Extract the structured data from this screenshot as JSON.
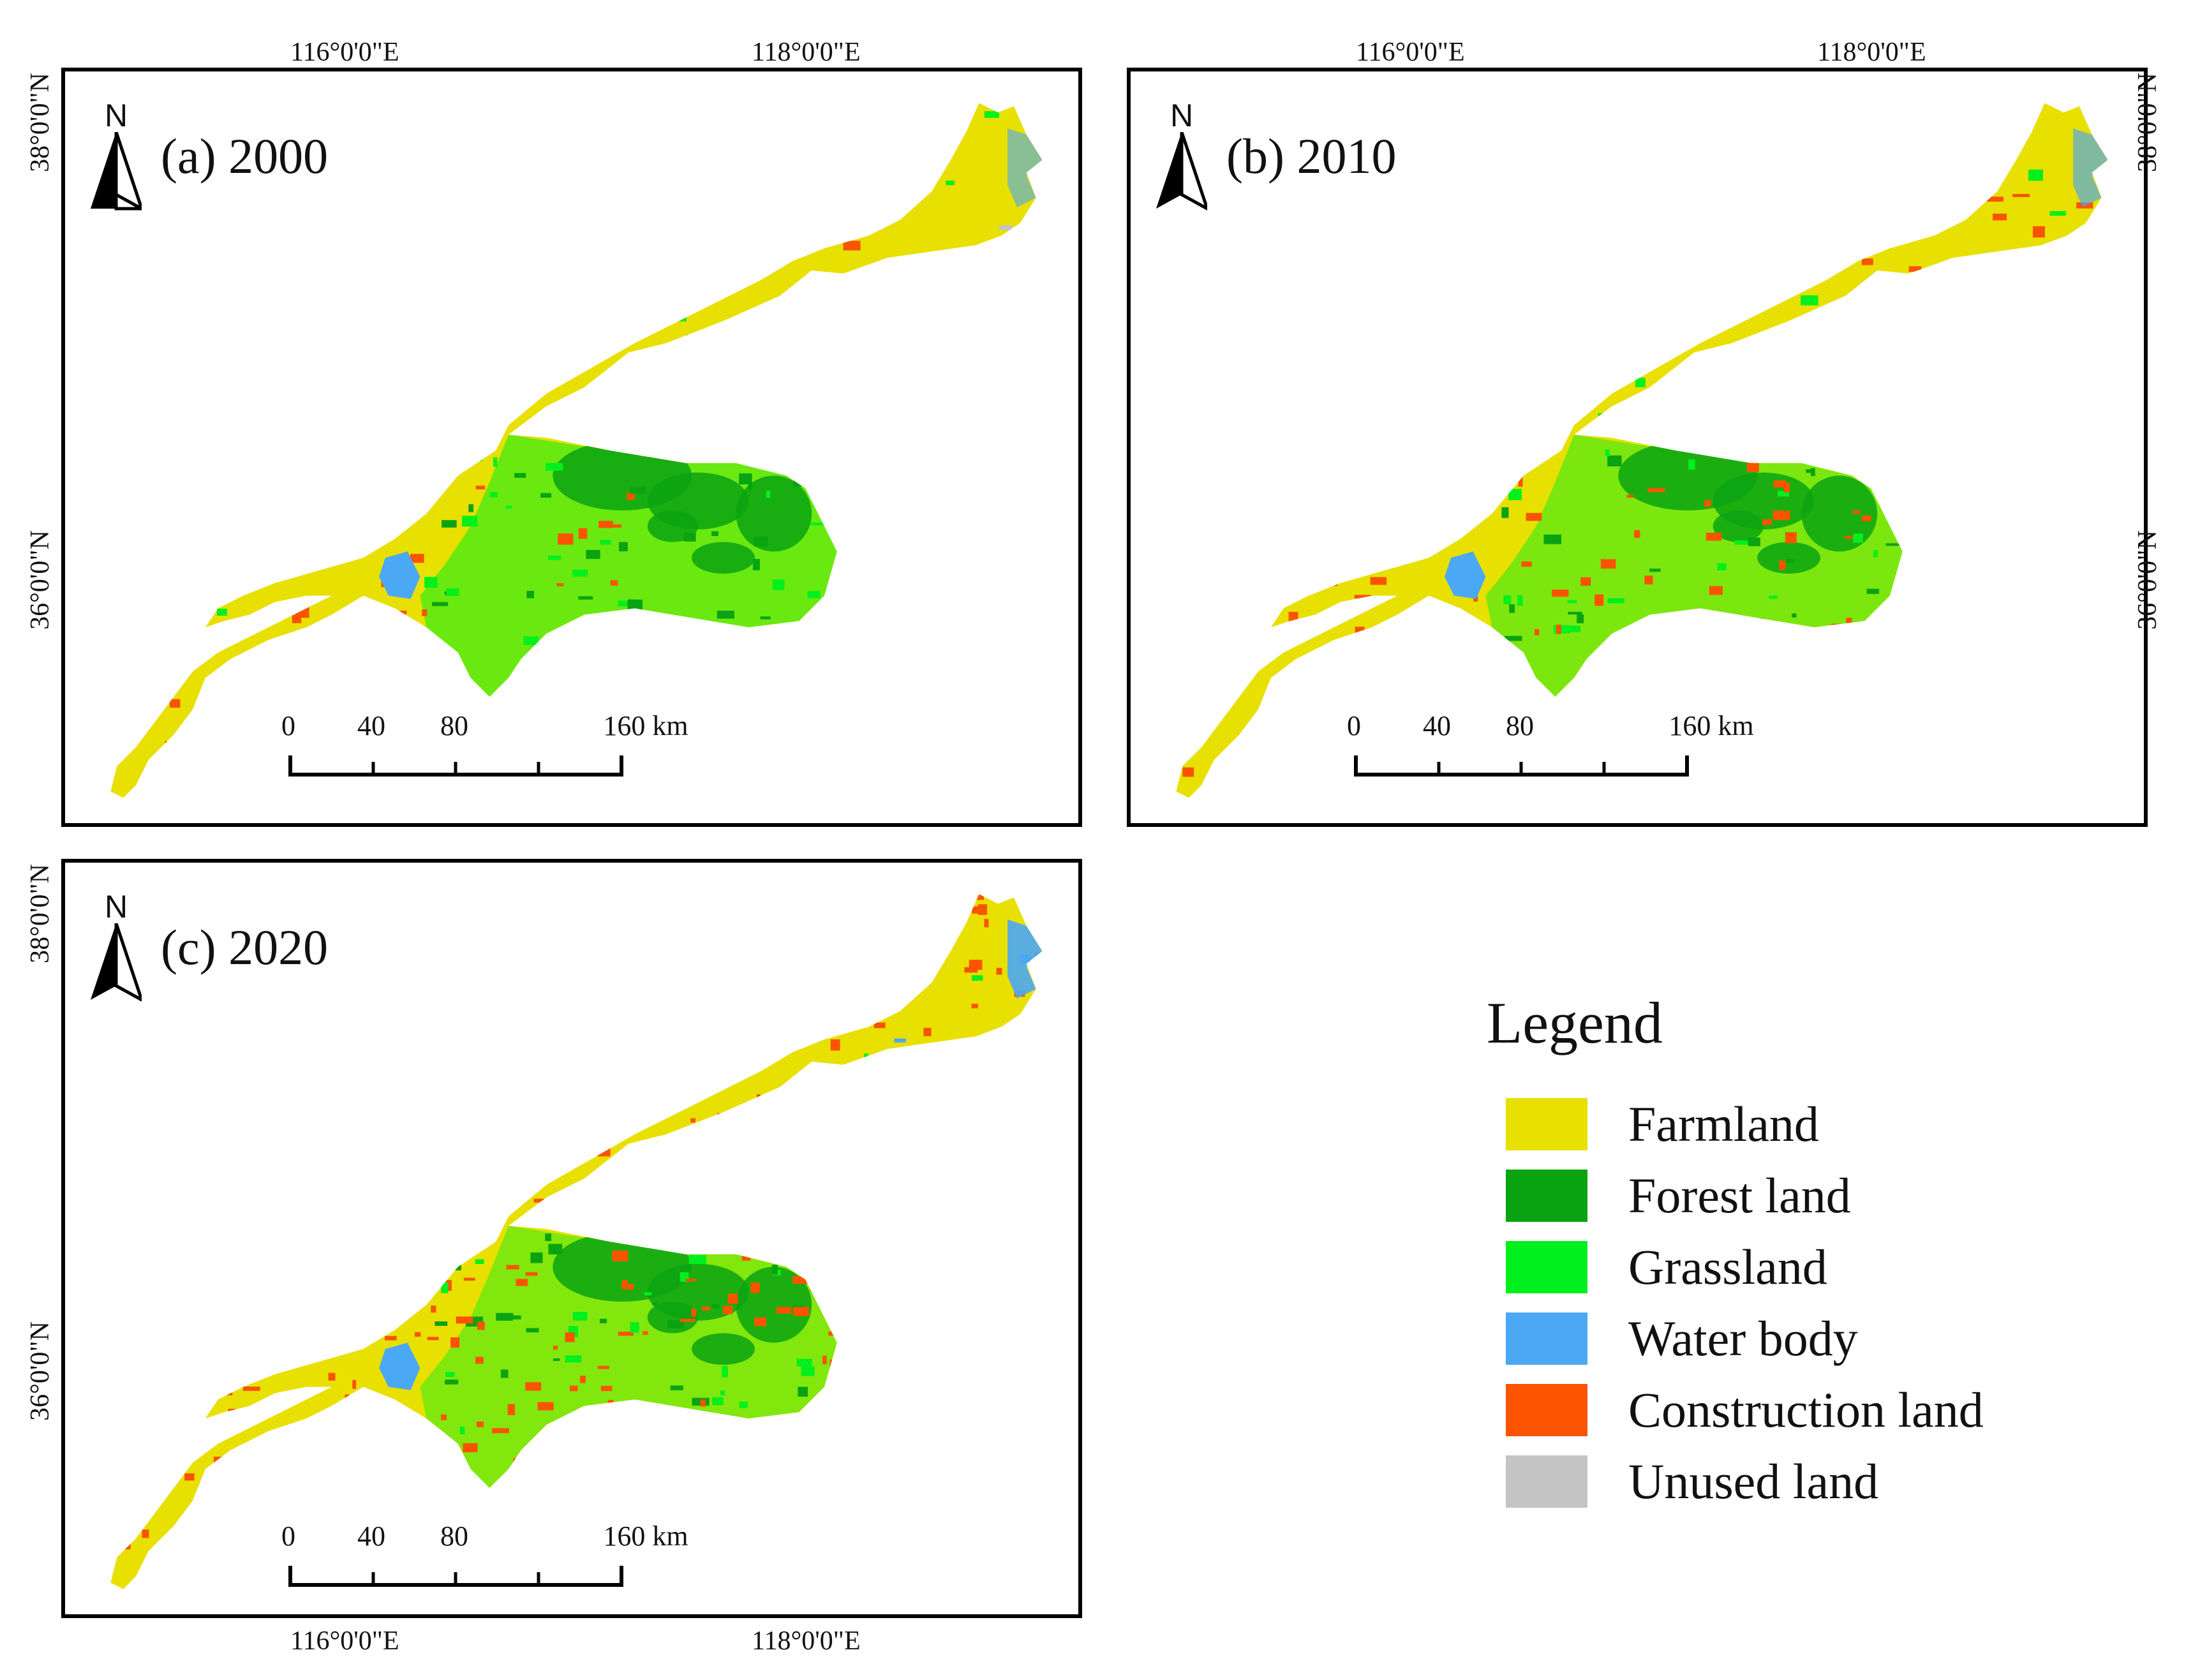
{
  "panels": [
    {
      "id": "a",
      "title": "(a) 2000",
      "north_label": "N",
      "top_coords": [
        "116°0'0\"E",
        "118°0'0\"E"
      ],
      "bottom_coords": [],
      "left_coords": [
        "38°0'0\"N",
        "36°0'0\"N"
      ],
      "right_coords": [],
      "scale_labels": [
        "0",
        "40",
        "80",
        "160 km"
      ],
      "dominant_classes": [
        "Farmland",
        "Forest land",
        "Grassland",
        "Construction land",
        "Water body",
        "Unused land"
      ]
    },
    {
      "id": "b",
      "title": "(b) 2010",
      "north_label": "N",
      "top_coords": [
        "116°0'0\"E",
        "118°0'0\"E"
      ],
      "bottom_coords": [],
      "left_coords": [],
      "right_coords": [
        "38°0'0\"N",
        "36°0'0\"N"
      ],
      "scale_labels": [
        "0",
        "40",
        "80",
        "160 km"
      ],
      "dominant_classes": [
        "Farmland",
        "Forest land",
        "Grassland",
        "Construction land",
        "Water body"
      ]
    },
    {
      "id": "c",
      "title": "(c) 2020",
      "north_label": "N",
      "top_coords": [],
      "bottom_coords": [
        "116°0'0\"E",
        "118°0'0\"E"
      ],
      "left_coords": [
        "38°0'0\"N",
        "36°0'0\"N"
      ],
      "right_coords": [],
      "scale_labels": [
        "0",
        "40",
        "80",
        "160 km"
      ],
      "dominant_classes": [
        "Farmland",
        "Forest land",
        "Grassland",
        "Construction land",
        "Water body"
      ]
    }
  ],
  "legend": {
    "title": "Legend",
    "items": [
      {
        "label": "Farmland",
        "color": "#e8e000"
      },
      {
        "label": "Forest land",
        "color": "#0aa312"
      },
      {
        "label": "Grassland",
        "color": "#00f01e"
      },
      {
        "label": "Water body",
        "color": "#4aa8f5"
      },
      {
        "label": "Construction land",
        "color": "#fa5400"
      },
      {
        "label": "Unused land",
        "color": "#c4c4c4"
      }
    ]
  }
}
